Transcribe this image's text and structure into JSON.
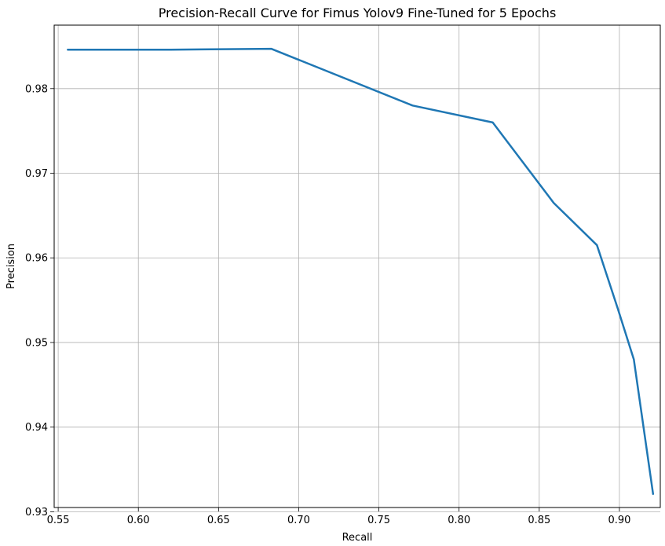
{
  "chart_data": {
    "type": "line",
    "title": "Precision-Recall Curve for Fimus Yolov9 Fine-Tuned for 5 Epochs",
    "xlabel": "Recall",
    "ylabel": "Precision",
    "xlim": [
      0.5475,
      0.9255
    ],
    "ylim": [
      0.9305,
      0.9875
    ],
    "xticks": [
      0.55,
      0.6,
      0.65,
      0.7,
      0.75,
      0.8,
      0.85,
      0.9
    ],
    "xtick_labels": [
      "0.55",
      "0.60",
      "0.65",
      "0.70",
      "0.75",
      "0.80",
      "0.85",
      "0.90"
    ],
    "yticks": [
      0.93,
      0.94,
      0.95,
      0.96,
      0.97,
      0.98
    ],
    "ytick_labels": [
      "0.93",
      "0.94",
      "0.95",
      "0.96",
      "0.97",
      "0.98"
    ],
    "grid": true,
    "legend": false,
    "line_color": "#1f77b4",
    "series": [
      {
        "x": [
          0.556,
          0.62,
          0.683,
          0.771,
          0.821,
          0.859,
          0.886,
          0.899,
          0.909,
          0.921
        ],
        "y": [
          0.9846,
          0.9846,
          0.9847,
          0.978,
          0.976,
          0.9665,
          0.9615,
          0.954,
          0.948,
          0.9321
        ]
      }
    ]
  }
}
